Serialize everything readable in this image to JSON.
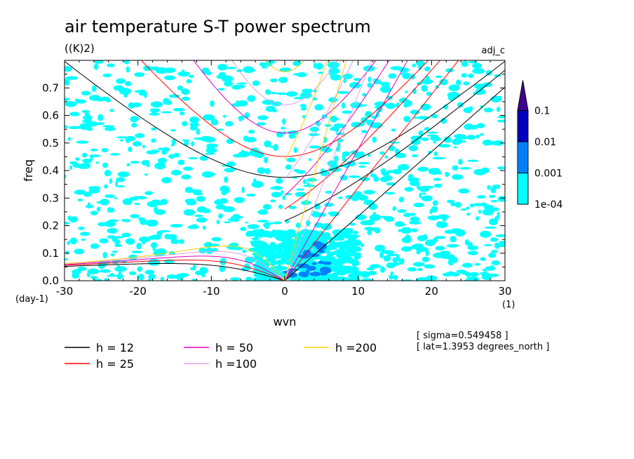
{
  "chart_data": {
    "type": "heatmap",
    "title": "air temperature S-T power spectrum",
    "units": "((K)2)",
    "corner_label": "adj_c",
    "xlabel": "wvn",
    "ylabel": "freq",
    "x_units": "(1)",
    "y_units": "(day-1)",
    "xlim": [
      -30,
      30
    ],
    "ylim": [
      0,
      0.8
    ],
    "x_ticks": [
      -30,
      -20,
      -10,
      0,
      10,
      20,
      30
    ],
    "x_tick_labels": [
      "-30",
      "-20",
      "-10",
      "0",
      "10",
      "20",
      "30"
    ],
    "y_ticks": [
      0,
      0.1,
      0.2,
      0.3,
      0.4,
      0.5,
      0.6,
      0.7
    ],
    "y_tick_labels": [
      "0.0",
      "0.1",
      "0.2",
      "0.3",
      "0.4",
      "0.5",
      "0.6",
      "0.7"
    ],
    "colorbar": {
      "levels": [
        "1e-04",
        "0.001",
        "0.01",
        "0.1"
      ],
      "colors": [
        "#00ffff",
        "#0080ff",
        "#0000c0",
        "#400090"
      ]
    },
    "dispersion_curves": [
      {
        "name": "h = 12",
        "label": "h = 12",
        "equivalent_depth_m": 12,
        "color": "#000000"
      },
      {
        "name": "h = 25",
        "label": "h = 25",
        "equivalent_depth_m": 25,
        "color": "#ff0000"
      },
      {
        "name": "h = 50",
        "label": "h = 50",
        "equivalent_depth_m": 50,
        "color": "#e000c0"
      },
      {
        "name": "h = 100",
        "label": "h =100",
        "equivalent_depth_m": 100,
        "color": "#e0a0e0"
      },
      {
        "name": "h = 200",
        "label": "h =200",
        "equivalent_depth_m": 200,
        "color": "#ffd000"
      }
    ],
    "annotations": [
      "[ sigma=0.549458 ]",
      "[ lat=1.3953 degrees_north ]"
    ]
  }
}
